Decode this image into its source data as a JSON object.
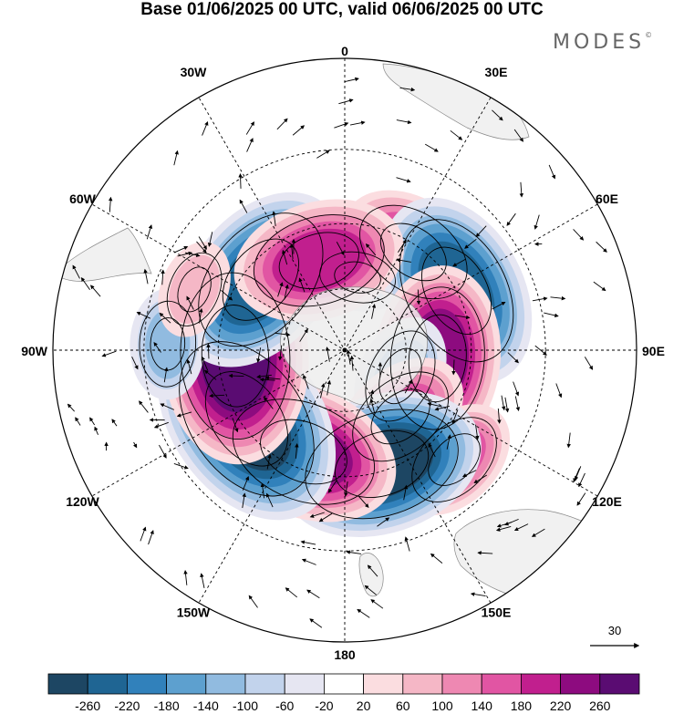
{
  "title": "Base 01/06/2025 00 UTC, valid 06/06/2025 00 UTC",
  "brand": {
    "name": "MODES",
    "mark": "©"
  },
  "map": {
    "projection": "south-polar-stereographic",
    "longitude_labels": [
      {
        "lon": 0,
        "text": "0"
      },
      {
        "lon": 30,
        "text": "30E"
      },
      {
        "lon": 60,
        "text": "60E"
      },
      {
        "lon": 90,
        "text": "90E"
      },
      {
        "lon": 120,
        "text": "120E"
      },
      {
        "lon": 150,
        "text": "150E"
      },
      {
        "lon": 180,
        "text": "180"
      },
      {
        "lon": -150,
        "text": "150W"
      },
      {
        "lon": -120,
        "text": "120W"
      },
      {
        "lon": -90,
        "text": "90W"
      },
      {
        "lon": -60,
        "text": "60W"
      },
      {
        "lon": -30,
        "text": "30W"
      }
    ],
    "wind_reference_vector": "30",
    "anomalies": [
      {
        "lon": 10,
        "lat": -66,
        "value": -60
      },
      {
        "lon": 35,
        "lat": -52,
        "value": 150
      },
      {
        "lon": 62,
        "lat": -50,
        "value": -220
      },
      {
        "lon": 95,
        "lat": -60,
        "value": 200
      },
      {
        "lon": 115,
        "lat": -70,
        "value": -100
      },
      {
        "lon": 140,
        "lat": -62,
        "value": 130
      },
      {
        "lon": 135,
        "lat": -42,
        "value": 110
      },
      {
        "lon": 162,
        "lat": -52,
        "value": -230
      },
      {
        "lon": -158,
        "lat": -55,
        "value": 210
      },
      {
        "lon": -125,
        "lat": -52,
        "value": -260
      },
      {
        "lon": -93,
        "lat": -55,
        "value": 250
      },
      {
        "lon": -50,
        "lat": -55,
        "value": -220
      },
      {
        "lon": -16,
        "lat": -60,
        "value": 180
      },
      {
        "lon": -88,
        "lat": -36,
        "value": -80
      },
      {
        "lon": -68,
        "lat": -40,
        "value": 60
      }
    ]
  },
  "colorbar": {
    "ticks": [
      "-260",
      "-220",
      "-180",
      "-140",
      "-100",
      "-60",
      "-20",
      "20",
      "60",
      "100",
      "140",
      "180",
      "220",
      "260"
    ],
    "colors": [
      "#1d4663",
      "#1f6593",
      "#3181bb",
      "#5da0cf",
      "#91bbe0",
      "#c2d3ec",
      "#e6e6f2",
      "#ffffff",
      "#fbdde0",
      "#f5b7c6",
      "#ee88b2",
      "#e155a3",
      "#c11f8e",
      "#8d0b7f",
      "#5a0c72"
    ]
  }
}
